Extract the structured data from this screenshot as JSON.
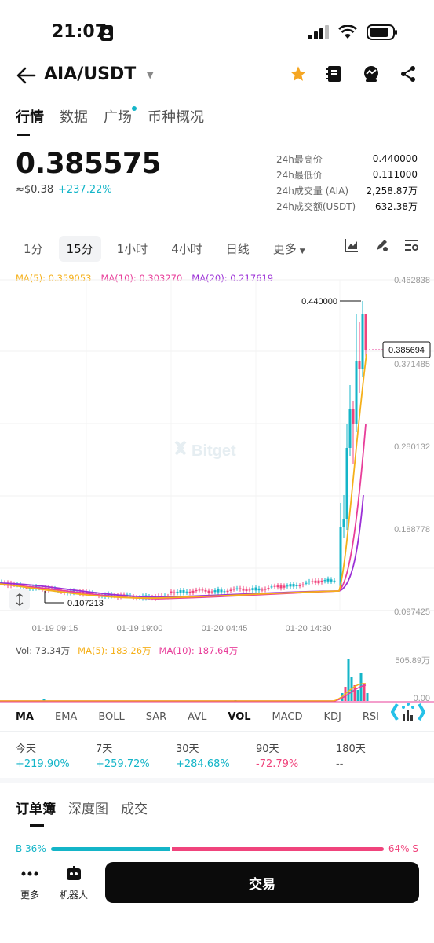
{
  "status_bar": {
    "time": "21:07"
  },
  "header": {
    "pair": "AIA/USDT"
  },
  "tabs": [
    "行情",
    "数据",
    "广场",
    "币种概况"
  ],
  "price": {
    "last": "0.385575",
    "approx": "≈$0.38",
    "change": "+237.22%"
  },
  "stats": [
    {
      "label": "24h最高价",
      "value": "0.440000"
    },
    {
      "label": "24h最低价",
      "value": "0.111000"
    },
    {
      "label": "24h成交量 (AIA)",
      "value": "2,258.87万"
    },
    {
      "label": "24h成交额(USDT)",
      "value": "632.38万"
    }
  ],
  "intervals": [
    "1分",
    "15分",
    "1小时",
    "4小时",
    "日线",
    "更多"
  ],
  "ma_legend": {
    "ma5": "MA(5): 0.359053",
    "ma10": "MA(10): 0.303270",
    "ma20": "MA(20): 0.217619"
  },
  "vol_legend": {
    "vol": "Vol: 73.34万",
    "ma5": "MA(5): 183.26万",
    "ma10": "MA(10): 187.64万"
  },
  "watermark": "Bitget",
  "indicators": [
    "MA",
    "EMA",
    "BOLL",
    "SAR",
    "AVL",
    "VOL",
    "MACD",
    "KDJ",
    "RSI"
  ],
  "performance": [
    {
      "label": "今天",
      "value": "+219.90%",
      "positive": true
    },
    {
      "label": "7天",
      "value": "+259.72%",
      "positive": true
    },
    {
      "label": "30天",
      "value": "+284.68%",
      "positive": true
    },
    {
      "label": "90天",
      "value": "-72.79%",
      "positive": false
    },
    {
      "label": "180天",
      "value": "--",
      "positive": null
    }
  ],
  "orderbook_tabs": [
    "订单簿",
    "深度图",
    "成交"
  ],
  "buy_sell": {
    "buy_label": "B 36%",
    "sell_label": "64% S",
    "buy_pct": 36
  },
  "bottom_nav": {
    "more": "更多",
    "bot": "机器人",
    "trade": "交易"
  },
  "colors": {
    "up": "#14b5c8",
    "down": "#f0447c",
    "ma5": "#f5b01a",
    "ma10": "#e83e9a",
    "ma20": "#9b2fd6",
    "accent_star": "#f5a623"
  },
  "chart_data": {
    "type": "candlestick",
    "y_axis_ticks": [
      "0.462838",
      "0.371485",
      "0.280132",
      "0.188778",
      "0.097425"
    ],
    "ylim": [
      0.097425,
      0.462838
    ],
    "x_axis_ticks": [
      "01-19 09:15",
      "01-19 19:00",
      "01-20 04:45",
      "01-20 14:30"
    ],
    "high_marker": "0.440000",
    "low_marker": "0.107213",
    "current_price_marker": "0.385694",
    "volume_axis_ticks": [
      "505.89万",
      "0.00"
    ],
    "volume_ylim": [
      0,
      505.89
    ]
  }
}
